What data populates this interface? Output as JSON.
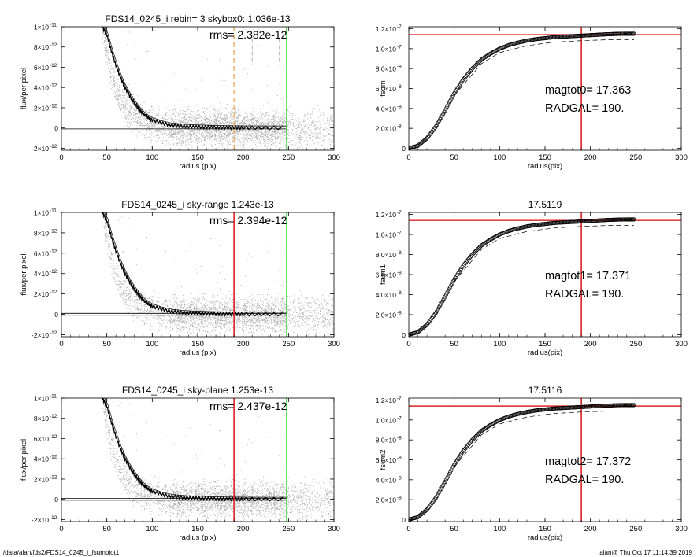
{
  "footer": {
    "path": "/data/alan/fds2/FDS14_0245_i_fsumplot1",
    "stamp": "alan@  Thu Oct 17 11:14:39 2019"
  },
  "chart_data": [
    {
      "type": "scatter",
      "title": "FDS14_0245_i rebin= 3    skybox0:  1.036e-13",
      "annotation": "rms= 2.382e-12",
      "xlabel": "radius (pix)",
      "ylabel": "flux/per pixel",
      "xlim": [
        0,
        300
      ],
      "ylim": [
        -2.2e-12,
        1e-11
      ],
      "xticks": [
        "0",
        "50",
        "100",
        "150",
        "200",
        "250",
        "300"
      ],
      "yticks": [
        {
          "v": 1e-11,
          "label": "1×10",
          "exp": "-11"
        },
        {
          "v": 8e-12,
          "label": "8×10",
          "exp": "-12"
        },
        {
          "v": 6e-12,
          "label": "6×10",
          "exp": "-12"
        },
        {
          "v": 4e-12,
          "label": "4×10",
          "exp": "-12"
        },
        {
          "v": 2e-12,
          "label": "2×10",
          "exp": "-12"
        },
        {
          "v": 0,
          "label": "0",
          "exp": ""
        },
        {
          "v": -2e-12,
          "label": "-2×10",
          "exp": "-12"
        }
      ],
      "vlines": [
        {
          "x": 190,
          "color": "#f0a040",
          "style": "dashed"
        },
        {
          "x": 210,
          "color": "#999999",
          "style": "dashed-short"
        },
        {
          "x": 240,
          "color": "#999999",
          "style": "dashed-short"
        },
        {
          "x": 248,
          "color": "#33dd33",
          "style": "solid"
        }
      ],
      "profile_series": {
        "name": "profile",
        "x": [
          45,
          50,
          55,
          60,
          65,
          70,
          75,
          80,
          85,
          90,
          95,
          100,
          110,
          120,
          130,
          140,
          150,
          160,
          170,
          180,
          190,
          200,
          220,
          248
        ],
        "y": [
          1e-11,
          9.2e-12,
          7.6e-12,
          6.2e-12,
          5e-12,
          4e-12,
          3.2e-12,
          2.5e-12,
          1.9e-12,
          1.4e-12,
          1.05e-12,
          8e-13,
          5e-13,
          3e-13,
          2e-13,
          1.4e-13,
          1e-13,
          8e-14,
          5e-14,
          3e-14,
          2e-14,
          1e-14,
          0,
          0
        ]
      },
      "baseline": 0
    },
    {
      "type": "line",
      "title": "",
      "annotations": [
        "magtot0=  17.363",
        "RADGAL=    190."
      ],
      "xlabel": "radius(pix)",
      "ylabel": "fsum",
      "xlim": [
        0,
        300
      ],
      "ylim": [
        -2e-09,
        1.22e-07
      ],
      "xticks": [
        "0",
        "50",
        "100",
        "150",
        "200",
        "250",
        "300"
      ],
      "yticks": [
        {
          "v": 1.2e-07,
          "label": "1.2×10",
          "exp": "-7"
        },
        {
          "v": 1e-07,
          "label": "1.0×10",
          "exp": "-7"
        },
        {
          "v": 8e-08,
          "label": "8.0×10",
          "exp": "-8"
        },
        {
          "v": 6e-08,
          "label": "6.0×10",
          "exp": "-8"
        },
        {
          "v": 4e-08,
          "label": "4.0×10",
          "exp": "-8"
        },
        {
          "v": 2e-08,
          "label": "2.0×10",
          "exp": "-8"
        },
        {
          "v": 0,
          "label": "0",
          "exp": ""
        }
      ],
      "hline": 1.14e-07,
      "vline": 190,
      "curve": {
        "x": [
          0,
          10,
          20,
          30,
          40,
          50,
          60,
          70,
          80,
          90,
          100,
          110,
          120,
          130,
          140,
          150,
          160,
          170,
          180,
          190,
          200,
          210,
          220,
          230,
          240,
          248
        ],
        "y": [
          0,
          2.5e-09,
          1e-08,
          2.2e-08,
          3.8e-08,
          5.5e-08,
          6.9e-08,
          8e-08,
          8.9e-08,
          9.5e-08,
          1e-07,
          1.035e-07,
          1.06e-07,
          1.08e-07,
          1.095e-07,
          1.105e-07,
          1.115e-07,
          1.12e-07,
          1.125e-07,
          1.13e-07,
          1.135e-07,
          1.14e-07,
          1.145e-07,
          1.148e-07,
          1.15e-07,
          1.15e-07
        ]
      },
      "dashed_curve": {
        "x": [
          50,
          80,
          100,
          130,
          160,
          190,
          220,
          248
        ],
        "y": [
          5.3e-08,
          8.5e-08,
          9.6e-08,
          1.03e-07,
          1.065e-07,
          1.08e-07,
          1.09e-07,
          1.09e-07
        ]
      }
    },
    {
      "type": "scatter",
      "title": "FDS14_0245_i sky-range  1.243e-13",
      "annotation": "rms= 2.394e-12",
      "xlabel": "radius (pix)",
      "ylabel": "flux/per pixel",
      "xlim": [
        0,
        300
      ],
      "ylim": [
        -2.2e-12,
        1e-11
      ],
      "xticks": [
        "0",
        "50",
        "100",
        "150",
        "200",
        "250",
        "300"
      ],
      "yticks": [
        {
          "v": 1e-11,
          "label": "1×10",
          "exp": "-11"
        },
        {
          "v": 8e-12,
          "label": "8×10",
          "exp": "-12"
        },
        {
          "v": 6e-12,
          "label": "6×10",
          "exp": "-12"
        },
        {
          "v": 4e-12,
          "label": "4×10",
          "exp": "-12"
        },
        {
          "v": 2e-12,
          "label": "2×10",
          "exp": "-12"
        },
        {
          "v": 0,
          "label": "0",
          "exp": ""
        },
        {
          "v": -2e-12,
          "label": "-2×10",
          "exp": "-12"
        }
      ],
      "vlines": [
        {
          "x": 190,
          "color": "#dd2222",
          "style": "solid"
        },
        {
          "x": 248,
          "color": "#33dd33",
          "style": "solid"
        }
      ],
      "profile_series": {
        "name": "profile",
        "x": [
          45,
          50,
          55,
          60,
          65,
          70,
          75,
          80,
          85,
          90,
          95,
          100,
          110,
          120,
          130,
          140,
          150,
          160,
          170,
          180,
          190,
          200,
          220,
          248
        ],
        "y": [
          1e-11,
          9.2e-12,
          7.6e-12,
          6.2e-12,
          5e-12,
          4e-12,
          3.2e-12,
          2.5e-12,
          1.9e-12,
          1.4e-12,
          1.05e-12,
          8e-13,
          5e-13,
          3e-13,
          2e-13,
          1.4e-13,
          1e-13,
          8e-14,
          5e-14,
          3e-14,
          2e-14,
          1e-14,
          0,
          0
        ]
      },
      "baseline": 0
    },
    {
      "type": "line",
      "title": "17.5119",
      "annotations": [
        "magtot1=  17.371",
        "RADGAL=    190."
      ],
      "xlabel": "radius(pix)",
      "ylabel": "fsum1",
      "xlim": [
        0,
        300
      ],
      "ylim": [
        -2e-09,
        1.22e-07
      ],
      "xticks": [
        "0",
        "50",
        "100",
        "150",
        "200",
        "250",
        "300"
      ],
      "yticks": [
        {
          "v": 1.2e-07,
          "label": "1.2×10",
          "exp": "-7"
        },
        {
          "v": 1e-07,
          "label": "1.0×10",
          "exp": "-7"
        },
        {
          "v": 8e-08,
          "label": "8.0×10",
          "exp": "-8"
        },
        {
          "v": 6e-08,
          "label": "6.0×10",
          "exp": "-8"
        },
        {
          "v": 4e-08,
          "label": "4.0×10",
          "exp": "-8"
        },
        {
          "v": 2e-08,
          "label": "2.0×10",
          "exp": "-8"
        },
        {
          "v": 0,
          "label": "0",
          "exp": ""
        }
      ],
      "hline": 1.14e-07,
      "vline": 190,
      "curve": {
        "x": [
          0,
          10,
          20,
          30,
          40,
          50,
          60,
          70,
          80,
          90,
          100,
          110,
          120,
          130,
          140,
          150,
          160,
          170,
          180,
          190,
          200,
          210,
          220,
          230,
          240,
          248
        ],
        "y": [
          0,
          2.5e-09,
          1e-08,
          2.2e-08,
          3.8e-08,
          5.5e-08,
          6.9e-08,
          8e-08,
          8.9e-08,
          9.5e-08,
          1e-07,
          1.035e-07,
          1.06e-07,
          1.08e-07,
          1.095e-07,
          1.105e-07,
          1.115e-07,
          1.12e-07,
          1.125e-07,
          1.13e-07,
          1.135e-07,
          1.14e-07,
          1.145e-07,
          1.148e-07,
          1.15e-07,
          1.15e-07
        ]
      },
      "dashed_curve": {
        "x": [
          50,
          80,
          100,
          130,
          160,
          190,
          220,
          248
        ],
        "y": [
          5.3e-08,
          8.5e-08,
          9.6e-08,
          1.03e-07,
          1.065e-07,
          1.08e-07,
          1.09e-07,
          1.09e-07
        ]
      }
    },
    {
      "type": "scatter",
      "title": "FDS14_0245_i sky-plane  1.253e-13",
      "annotation": "rms= 2.437e-12",
      "xlabel": "radius (pix)",
      "ylabel": "flux/per pixel",
      "xlim": [
        0,
        300
      ],
      "ylim": [
        -2.2e-12,
        1e-11
      ],
      "xticks": [
        "0",
        "50",
        "100",
        "150",
        "200",
        "250",
        "300"
      ],
      "yticks": [
        {
          "v": 1e-11,
          "label": "1×10",
          "exp": "-11"
        },
        {
          "v": 8e-12,
          "label": "8×10",
          "exp": "-12"
        },
        {
          "v": 6e-12,
          "label": "6×10",
          "exp": "-12"
        },
        {
          "v": 4e-12,
          "label": "4×10",
          "exp": "-12"
        },
        {
          "v": 2e-12,
          "label": "2×10",
          "exp": "-12"
        },
        {
          "v": 0,
          "label": "0",
          "exp": ""
        },
        {
          "v": -2e-12,
          "label": "-2×10",
          "exp": "-12"
        }
      ],
      "vlines": [
        {
          "x": 190,
          "color": "#dd2222",
          "style": "solid"
        },
        {
          "x": 248,
          "color": "#33dd33",
          "style": "solid"
        }
      ],
      "profile_series": {
        "name": "profile",
        "x": [
          45,
          50,
          55,
          60,
          65,
          70,
          75,
          80,
          85,
          90,
          95,
          100,
          110,
          120,
          130,
          140,
          150,
          160,
          170,
          180,
          190,
          200,
          220,
          248
        ],
        "y": [
          1e-11,
          9.2e-12,
          7.6e-12,
          6.2e-12,
          5e-12,
          4e-12,
          3.2e-12,
          2.5e-12,
          1.9e-12,
          1.4e-12,
          1.05e-12,
          8e-13,
          5e-13,
          3e-13,
          2e-13,
          1.4e-13,
          1e-13,
          8e-14,
          5e-14,
          3e-14,
          2e-14,
          1e-14,
          0,
          0
        ]
      },
      "baseline": 0
    },
    {
      "type": "line",
      "title": "17.5116",
      "annotations": [
        "magtot2=  17.372",
        "RADGAL=    190."
      ],
      "xlabel": "radius(pix)",
      "ylabel": "fsum2",
      "xlim": [
        0,
        300
      ],
      "ylim": [
        -2e-09,
        1.22e-07
      ],
      "xticks": [
        "0",
        "50",
        "100",
        "150",
        "200",
        "250",
        "300"
      ],
      "yticks": [
        {
          "v": 1.2e-07,
          "label": "1.2×10",
          "exp": "-7"
        },
        {
          "v": 1e-07,
          "label": "1.0×10",
          "exp": "-7"
        },
        {
          "v": 8e-08,
          "label": "8.0×10",
          "exp": "-8"
        },
        {
          "v": 6e-08,
          "label": "6.0×10",
          "exp": "-8"
        },
        {
          "v": 4e-08,
          "label": "4.0×10",
          "exp": "-8"
        },
        {
          "v": 2e-08,
          "label": "2.0×10",
          "exp": "-8"
        },
        {
          "v": 0,
          "label": "0",
          "exp": ""
        }
      ],
      "hline": 1.14e-07,
      "vline": 190,
      "curve": {
        "x": [
          0,
          10,
          20,
          30,
          40,
          50,
          60,
          70,
          80,
          90,
          100,
          110,
          120,
          130,
          140,
          150,
          160,
          170,
          180,
          190,
          200,
          210,
          220,
          230,
          240,
          248
        ],
        "y": [
          0,
          2.5e-09,
          1e-08,
          2.2e-08,
          3.8e-08,
          5.5e-08,
          6.9e-08,
          8e-08,
          8.9e-08,
          9.5e-08,
          1e-07,
          1.035e-07,
          1.06e-07,
          1.08e-07,
          1.095e-07,
          1.105e-07,
          1.115e-07,
          1.12e-07,
          1.125e-07,
          1.13e-07,
          1.135e-07,
          1.14e-07,
          1.145e-07,
          1.148e-07,
          1.15e-07,
          1.15e-07
        ]
      },
      "dashed_curve": {
        "x": [
          50,
          80,
          100,
          130,
          160,
          190,
          220,
          248
        ],
        "y": [
          5.3e-08,
          8.5e-08,
          9.6e-08,
          1.03e-07,
          1.065e-07,
          1.08e-07,
          1.09e-07,
          1.09e-07
        ]
      }
    }
  ]
}
